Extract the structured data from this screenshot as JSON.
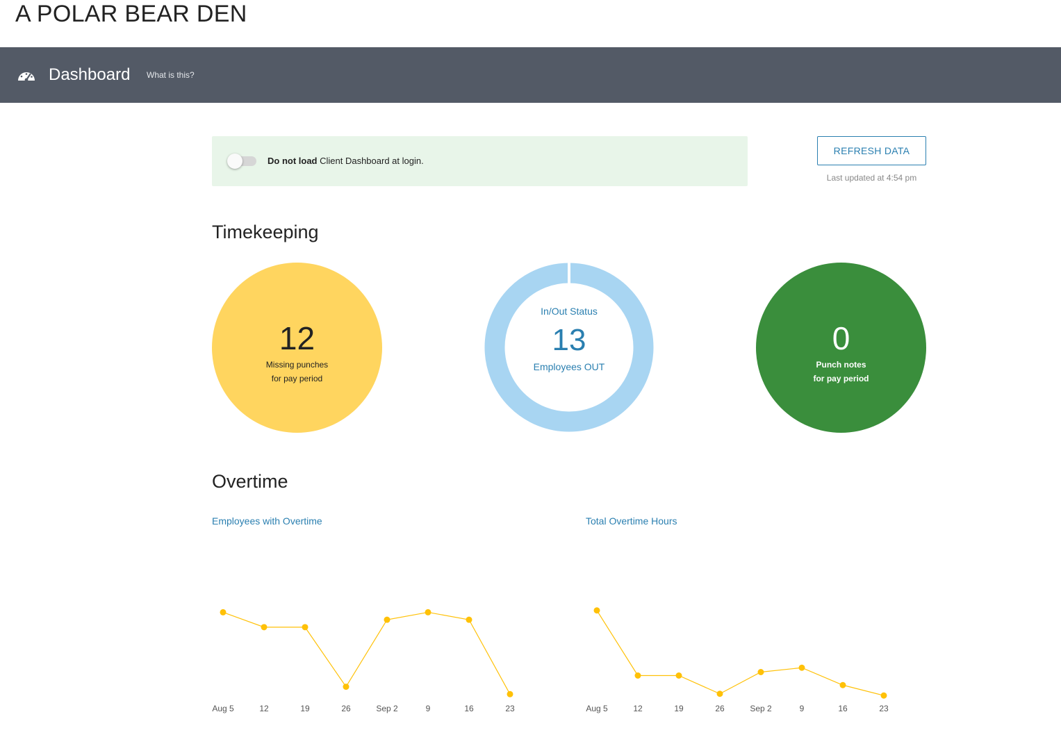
{
  "company": {
    "name": "A POLAR BEAR DEN"
  },
  "header": {
    "title": "Dashboard",
    "help_link": "What is this?",
    "icon": "dashboard-gauge-icon",
    "bg_color": "#535a66"
  },
  "preference": {
    "bold_text": "Do not load",
    "rest_text": " Client Dashboard at login.",
    "toggle_on": false,
    "bg_color": "#e8f5e9"
  },
  "refresh": {
    "label": "REFRESH DATA",
    "last_updated": "Last updated at 4:54 pm"
  },
  "timekeeping": {
    "heading": "Timekeeping",
    "missing_punches": {
      "value": "12",
      "line1": "Missing punches",
      "line2": "for pay period",
      "color": "#ffd55f"
    },
    "in_out_status": {
      "label": "In/Out Status",
      "value": "13",
      "sub": "Employees OUT",
      "ring_color": "#a8d5f2",
      "accent_color": "#2a7fb0"
    },
    "punch_notes": {
      "value": "0",
      "line1": "Punch notes",
      "line2": "for pay period",
      "color": "#3a8e3c"
    }
  },
  "overtime": {
    "heading": "Overtime",
    "chart1_title": "Employees with Overtime",
    "chart2_title": "Total Overtime Hours"
  },
  "chart_data": [
    {
      "type": "line",
      "title": "Employees with Overtime",
      "categories": [
        "Aug 5",
        "12",
        "19",
        "26",
        "Sep 2",
        "9",
        "16",
        "23"
      ],
      "values": [
        10,
        8,
        8,
        0,
        9,
        10,
        9,
        -1
      ],
      "ylim": [
        -2,
        12
      ],
      "color": "#ffc107",
      "grid": false
    },
    {
      "type": "line",
      "title": "Total Overtime Hours",
      "categories": [
        "Aug 5",
        "12",
        "19",
        "26",
        "Sep 2",
        "9",
        "16",
        "23"
      ],
      "values": [
        100,
        25,
        25,
        4,
        29,
        34,
        14,
        2
      ],
      "ylim": [
        -5,
        115
      ],
      "color": "#ffc107",
      "grid": false
    }
  ]
}
